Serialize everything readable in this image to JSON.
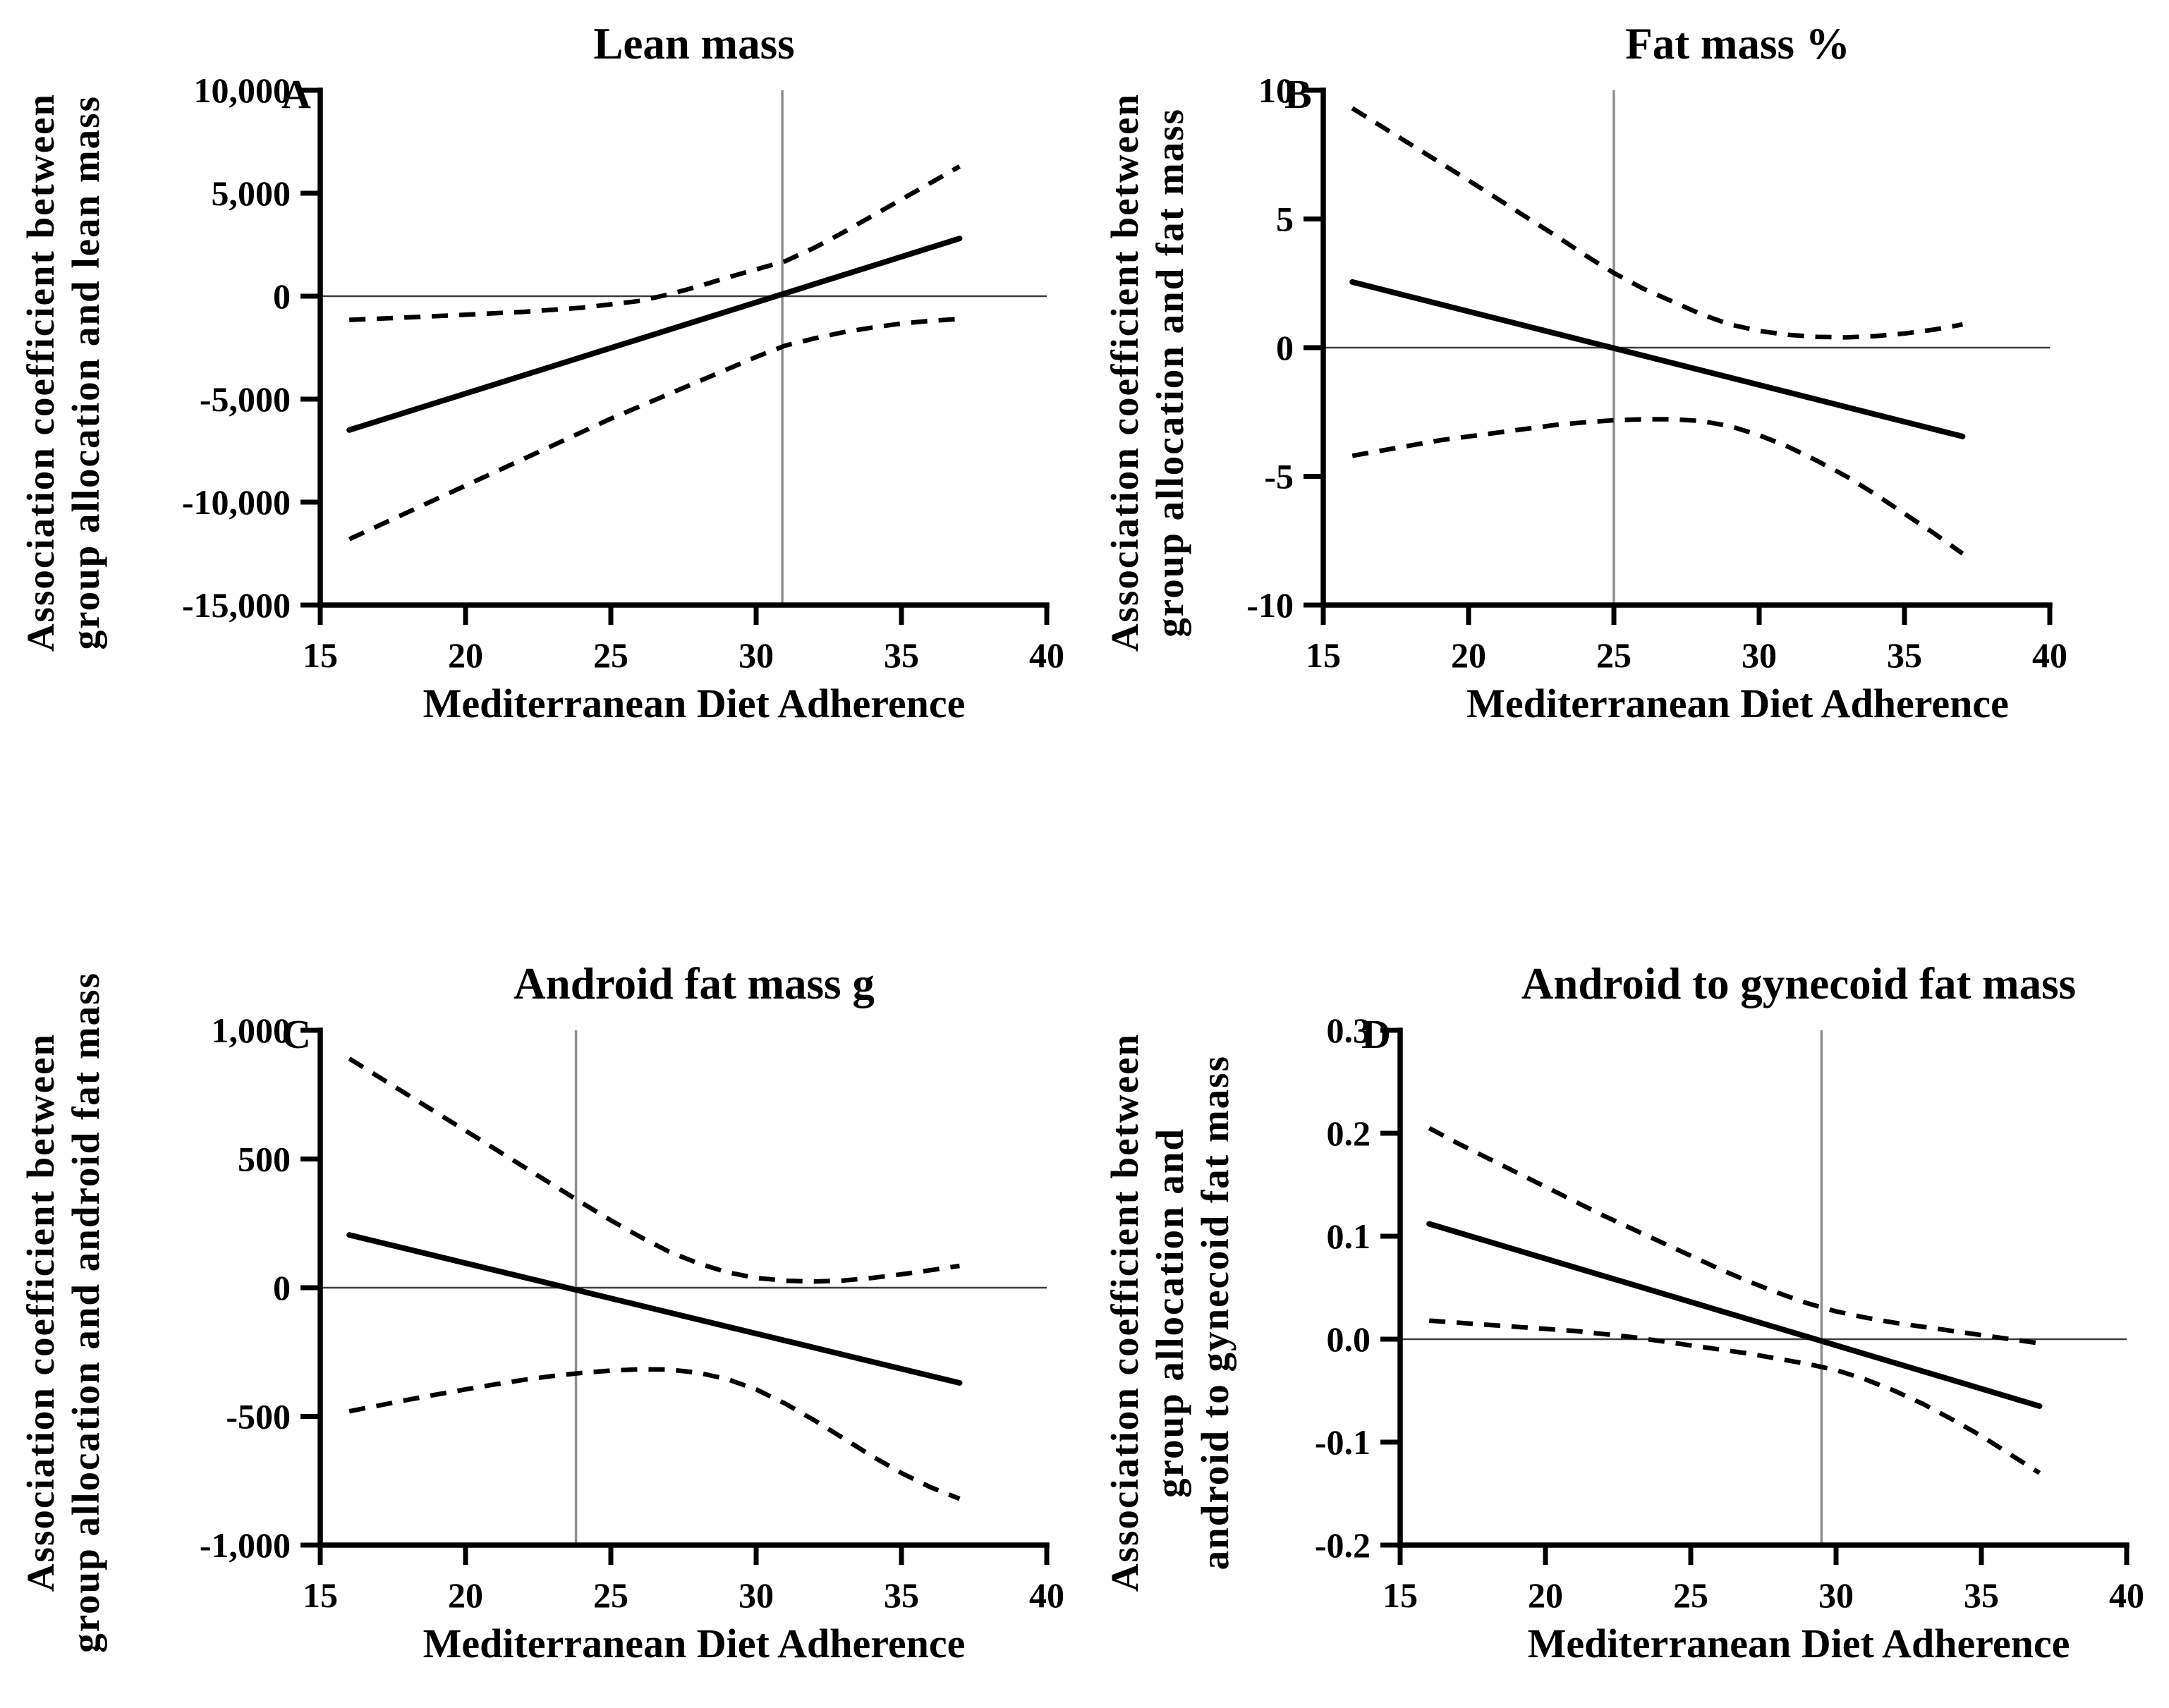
{
  "colors": {
    "curve": "#000000",
    "axis": "#000000",
    "zero_line": "#3c3c3c",
    "vline": "#8f8f8f",
    "background": "#ffffff"
  },
  "chart_data": [
    {
      "type": "line",
      "panel_label": "A",
      "title": "Lean mass",
      "ylabel_lines": [
        "Association coefficient between",
        "group allocation and lean mass"
      ],
      "xlabel": "Mediterranean Diet Adherence",
      "xlim": [
        15,
        40
      ],
      "ylim": [
        -15000,
        10000
      ],
      "x_tick_values": [
        15,
        20,
        25,
        30,
        35,
        40
      ],
      "x_tick_labels": [
        "15",
        "20",
        "25",
        "30",
        "35",
        "40"
      ],
      "y_tick_values": [
        10000,
        5000,
        0,
        -5000,
        -10000,
        -15000
      ],
      "y_tick_labels": [
        "10,000",
        "5,000",
        "0",
        "-5,000",
        "-10,000",
        "-15,000"
      ],
      "zero_line_y": 0,
      "vline_x": 30.9,
      "grid": false,
      "legend": "none",
      "series": [
        {
          "name": "estimate",
          "style": "solid",
          "points": [
            [
              16,
              -6500
            ],
            [
              37,
              2800
            ]
          ]
        },
        {
          "name": "upper-ci",
          "style": "dashed",
          "points": [
            [
              16,
              -1150
            ],
            [
              18,
              -1030
            ],
            [
              20,
              -900
            ],
            [
              22,
              -760
            ],
            [
              24,
              -560
            ],
            [
              26,
              -230
            ],
            [
              27,
              90
            ],
            [
              28,
              470
            ],
            [
              29,
              900
            ],
            [
              30,
              1300
            ],
            [
              31,
              1700
            ],
            [
              32,
              2350
            ],
            [
              33,
              3100
            ],
            [
              34,
              3900
            ],
            [
              35,
              4700
            ],
            [
              36,
              5500
            ],
            [
              37,
              6300
            ]
          ]
        },
        {
          "name": "lower-ci",
          "style": "dashed",
          "points": [
            [
              16,
              -11800
            ],
            [
              17,
              -11150
            ],
            [
              18,
              -10500
            ],
            [
              19,
              -9850
            ],
            [
              20,
              -9200
            ],
            [
              21,
              -8550
            ],
            [
              22,
              -7900
            ],
            [
              23,
              -7250
            ],
            [
              24,
              -6600
            ],
            [
              25,
              -5950
            ],
            [
              26,
              -5350
            ],
            [
              27,
              -4750
            ],
            [
              28,
              -4150
            ],
            [
              29,
              -3550
            ],
            [
              30,
              -2950
            ],
            [
              31,
              -2400
            ],
            [
              32,
              -2050
            ],
            [
              33,
              -1750
            ],
            [
              34,
              -1520
            ],
            [
              35,
              -1330
            ],
            [
              36,
              -1200
            ],
            [
              37,
              -1100
            ]
          ]
        }
      ]
    },
    {
      "type": "line",
      "panel_label": "B",
      "title": "Fat mass %",
      "ylabel_lines": [
        "Association coefficient between",
        "group allocation and fat mass"
      ],
      "xlabel": "Mediterranean Diet Adherence",
      "xlim": [
        15,
        40
      ],
      "ylim": [
        -10,
        10
      ],
      "x_tick_values": [
        15,
        20,
        25,
        30,
        35,
        40
      ],
      "x_tick_labels": [
        "15",
        "20",
        "25",
        "30",
        "35",
        "40"
      ],
      "y_tick_values": [
        10,
        5,
        0,
        -5,
        -10
      ],
      "y_tick_labels": [
        "10",
        "5",
        "0",
        "-5",
        "-10"
      ],
      "zero_line_y": 0,
      "vline_x": 25,
      "grid": false,
      "legend": "none",
      "series": [
        {
          "name": "estimate",
          "style": "solid",
          "points": [
            [
              16,
              2.55
            ],
            [
              37,
              -3.45
            ]
          ]
        },
        {
          "name": "upper-ci",
          "style": "dashed",
          "points": [
            [
              16,
              9.3
            ],
            [
              17,
              8.6
            ],
            [
              18,
              7.9
            ],
            [
              19,
              7.2
            ],
            [
              20,
              6.5
            ],
            [
              21,
              5.78
            ],
            [
              22,
              5.06
            ],
            [
              23,
              4.35
            ],
            [
              24,
              3.6
            ],
            [
              25,
              2.9
            ],
            [
              26,
              2.3
            ],
            [
              27,
              1.8
            ],
            [
              28,
              1.3
            ],
            [
              29,
              0.9
            ],
            [
              30,
              0.65
            ],
            [
              31,
              0.5
            ],
            [
              32,
              0.42
            ],
            [
              33,
              0.4
            ],
            [
              34,
              0.45
            ],
            [
              35,
              0.55
            ],
            [
              36,
              0.7
            ],
            [
              37,
              0.9
            ]
          ]
        },
        {
          "name": "lower-ci",
          "style": "dashed",
          "points": [
            [
              16,
              -4.2
            ],
            [
              17,
              -4.0
            ],
            [
              18,
              -3.8
            ],
            [
              19,
              -3.6
            ],
            [
              20,
              -3.45
            ],
            [
              21,
              -3.3
            ],
            [
              22,
              -3.15
            ],
            [
              23,
              -3.0
            ],
            [
              24,
              -2.9
            ],
            [
              25,
              -2.82
            ],
            [
              26,
              -2.78
            ],
            [
              27,
              -2.78
            ],
            [
              28,
              -2.85
            ],
            [
              29,
              -3.05
            ],
            [
              30,
              -3.4
            ],
            [
              31,
              -3.85
            ],
            [
              32,
              -4.4
            ],
            [
              33,
              -5.0
            ],
            [
              34,
              -5.7
            ],
            [
              35,
              -6.45
            ],
            [
              36,
              -7.2
            ],
            [
              37,
              -8.0
            ]
          ]
        }
      ]
    },
    {
      "type": "line",
      "panel_label": "C",
      "title": "Android fat mass g",
      "ylabel_lines": [
        "Association coefficient between",
        "group allocation and android fat mass"
      ],
      "xlabel": "Mediterranean Diet Adherence",
      "xlim": [
        15,
        40
      ],
      "ylim": [
        -1000,
        1000
      ],
      "x_tick_values": [
        15,
        20,
        25,
        30,
        35,
        40
      ],
      "x_tick_labels": [
        "15",
        "20",
        "25",
        "30",
        "35",
        "40"
      ],
      "y_tick_values": [
        1000,
        500,
        0,
        -500,
        -1000
      ],
      "y_tick_labels": [
        "1,000",
        "500",
        "0",
        "-500",
        "-1,000"
      ],
      "zero_line_y": 0,
      "vline_x": 23.8,
      "grid": false,
      "legend": "none",
      "series": [
        {
          "name": "estimate",
          "style": "solid",
          "points": [
            [
              16,
              205
            ],
            [
              37,
              -370
            ]
          ]
        },
        {
          "name": "upper-ci",
          "style": "dashed",
          "points": [
            [
              16,
              890
            ],
            [
              17,
              820
            ],
            [
              18,
              750
            ],
            [
              19,
              680
            ],
            [
              20,
              610
            ],
            [
              21,
              540
            ],
            [
              22,
              470
            ],
            [
              23,
              400
            ],
            [
              24,
              330
            ],
            [
              25,
              262
            ],
            [
              26,
              198
            ],
            [
              27,
              140
            ],
            [
              28,
              95
            ],
            [
              29,
              60
            ],
            [
              30,
              38
            ],
            [
              31,
              27
            ],
            [
              32,
              24
            ],
            [
              33,
              28
            ],
            [
              34,
              38
            ],
            [
              35,
              52
            ],
            [
              36,
              68
            ],
            [
              37,
              85
            ]
          ]
        },
        {
          "name": "lower-ci",
          "style": "dashed",
          "points": [
            [
              16,
              -480
            ],
            [
              17,
              -458
            ],
            [
              18,
              -436
            ],
            [
              19,
              -415
            ],
            [
              20,
              -395
            ],
            [
              21,
              -376
            ],
            [
              22,
              -358
            ],
            [
              23,
              -343
            ],
            [
              24,
              -331
            ],
            [
              25,
              -322
            ],
            [
              26,
              -317
            ],
            [
              27,
              -318
            ],
            [
              28,
              -330
            ],
            [
              29,
              -355
            ],
            [
              30,
              -395
            ],
            [
              31,
              -450
            ],
            [
              32,
              -515
            ],
            [
              33,
              -585
            ],
            [
              34,
              -655
            ],
            [
              35,
              -720
            ],
            [
              36,
              -775
            ],
            [
              37,
              -820
            ]
          ]
        }
      ]
    },
    {
      "type": "line",
      "panel_label": "D",
      "title": "Android to gynecoid fat mass",
      "ylabel_lines": [
        "Association coefficient between",
        "group allocation and",
        "android to gynecoid fat mass"
      ],
      "xlabel": "Mediterranean Diet Adherence",
      "xlim": [
        15,
        40
      ],
      "ylim": [
        -0.2,
        0.3
      ],
      "x_tick_values": [
        15,
        20,
        25,
        30,
        35,
        40
      ],
      "x_tick_labels": [
        "15",
        "20",
        "25",
        "30",
        "35",
        "40"
      ],
      "y_tick_values": [
        0.3,
        0.2,
        0.1,
        0.0,
        -0.1,
        -0.2
      ],
      "y_tick_labels": [
        "0.3",
        "0.2",
        "0.1",
        "0.0",
        "-0.1",
        "-0.2"
      ],
      "zero_line_y": 0,
      "vline_x": 29.5,
      "grid": false,
      "legend": "none",
      "series": [
        {
          "name": "estimate",
          "style": "solid",
          "points": [
            [
              16,
              0.112
            ],
            [
              37,
              -0.065
            ]
          ]
        },
        {
          "name": "upper-ci",
          "style": "dashed",
          "points": [
            [
              16,
              0.205
            ],
            [
              17,
              0.19
            ],
            [
              18,
              0.176
            ],
            [
              19,
              0.162
            ],
            [
              20,
              0.148
            ],
            [
              21,
              0.134
            ],
            [
              22,
              0.12
            ],
            [
              23,
              0.107
            ],
            [
              24,
              0.094
            ],
            [
              25,
              0.081
            ],
            [
              26,
              0.068
            ],
            [
              27,
              0.056
            ],
            [
              28,
              0.045
            ],
            [
              29,
              0.035
            ],
            [
              30,
              0.027
            ],
            [
              31,
              0.021
            ],
            [
              32,
              0.016
            ],
            [
              33,
              0.012
            ],
            [
              34,
              0.008
            ],
            [
              35,
              0.004
            ],
            [
              36,
              0.0
            ],
            [
              37,
              -0.004
            ]
          ]
        },
        {
          "name": "lower-ci",
          "style": "dashed",
          "points": [
            [
              16,
              0.018
            ],
            [
              17,
              0.016
            ],
            [
              18,
              0.014
            ],
            [
              19,
              0.012
            ],
            [
              20,
              0.01
            ],
            [
              21,
              0.008
            ],
            [
              22,
              0.005
            ],
            [
              23,
              0.002
            ],
            [
              24,
              -0.002
            ],
            [
              25,
              -0.006
            ],
            [
              26,
              -0.01
            ],
            [
              27,
              -0.014
            ],
            [
              28,
              -0.019
            ],
            [
              29,
              -0.024
            ],
            [
              30,
              -0.03
            ],
            [
              31,
              -0.039
            ],
            [
              32,
              -0.05
            ],
            [
              33,
              -0.063
            ],
            [
              34,
              -0.078
            ],
            [
              35,
              -0.094
            ],
            [
              36,
              -0.112
            ],
            [
              37,
              -0.13
            ]
          ]
        }
      ]
    }
  ]
}
